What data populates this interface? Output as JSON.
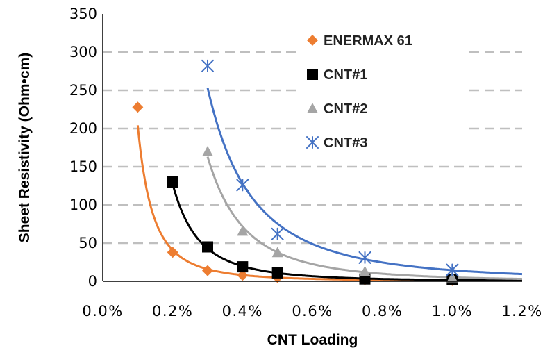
{
  "chart_data": {
    "type": "scatter",
    "title": "",
    "xlabel": "CNT Loading",
    "ylabel": "Sheet Resistivity (Ohm•cm)",
    "xlim": [
      0.0,
      1.2
    ],
    "ylim": [
      0,
      350
    ],
    "x_tick_labels": [
      "0.0%",
      "0.2%",
      "0.4%",
      "0.6%",
      "0.8%",
      "1.0%",
      "1.2%"
    ],
    "y_tick_labels": [
      "0",
      "50",
      "100",
      "150",
      "200",
      "250",
      "300",
      "350"
    ],
    "grid": "horizontal dashed",
    "legend_position": "top-right",
    "series": [
      {
        "name": "ENERMAX 61",
        "marker": "diamond",
        "color": "#ED7D31",
        "x": [
          0.1,
          0.2,
          0.3,
          0.4,
          0.5,
          0.75,
          1.0
        ],
        "y": [
          228,
          38,
          14,
          8,
          5,
          2,
          1
        ],
        "trend": "power"
      },
      {
        "name": "CNT#1",
        "marker": "square",
        "color": "#000000",
        "x": [
          0.2,
          0.3,
          0.4,
          0.5,
          0.75,
          1.0
        ],
        "y": [
          130,
          45,
          19,
          11,
          3,
          2
        ],
        "trend": "power"
      },
      {
        "name": "CNT#2",
        "marker": "triangle",
        "color": "#A5A5A5",
        "x": [
          0.3,
          0.4,
          0.5,
          0.75,
          1.0
        ],
        "y": [
          170,
          66,
          38,
          13,
          5
        ],
        "trend": "power"
      },
      {
        "name": "CNT#3",
        "marker": "asterisk",
        "color": "#4472C4",
        "x": [
          0.3,
          0.4,
          0.5,
          0.75,
          1.0
        ],
        "y": [
          282,
          126,
          62,
          31,
          15
        ],
        "trend": "power"
      }
    ]
  }
}
